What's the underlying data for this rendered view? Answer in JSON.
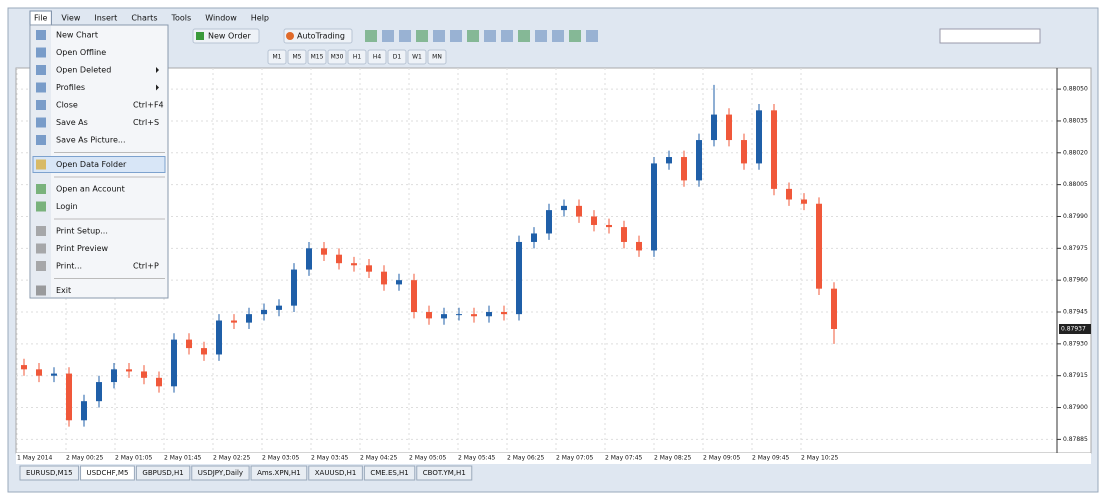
{
  "menubar": [
    "File",
    "View",
    "Insert",
    "Charts",
    "Tools",
    "Window",
    "Help"
  ],
  "toolbar": {
    "new_order": "New Order",
    "autotrading": "AutoTrading",
    "timeframes": [
      "M1",
      "M5",
      "M15",
      "M30",
      "H1",
      "H4",
      "D1",
      "W1",
      "MN"
    ]
  },
  "menu": {
    "groups": [
      [
        {
          "label": "New Chart"
        },
        {
          "label": "Open Offline"
        },
        {
          "label": "Open Deleted",
          "submenu": true
        },
        {
          "label": "Profiles",
          "submenu": true
        },
        {
          "label": "Close",
          "shortcut": "Ctrl+F4"
        },
        {
          "label": "Save As",
          "shortcut": "Ctrl+S"
        },
        {
          "label": "Save As Picture..."
        }
      ],
      [
        {
          "label": "Open Data Folder",
          "highlighted": true
        }
      ],
      [
        {
          "label": "Open an Account"
        },
        {
          "label": "Login"
        }
      ],
      [
        {
          "label": "Print Setup..."
        },
        {
          "label": "Print Preview"
        },
        {
          "label": "Print...",
          "shortcut": "Ctrl+P"
        }
      ],
      [
        {
          "label": "Exit"
        }
      ]
    ]
  },
  "chart": {
    "type": "candlestick",
    "up_color": "#1f5fa8",
    "down_color": "#f0583a",
    "ylim": [
      0.8788,
      0.88059
    ],
    "yticks": [
      {
        "value": 0.8805,
        "label": "0.88050"
      },
      {
        "value": 0.88035,
        "label": "0.88035"
      },
      {
        "value": 0.8802,
        "label": "0.88020"
      },
      {
        "value": 0.88005,
        "label": "0.88005"
      },
      {
        "value": 0.8799,
        "label": "0.87990"
      },
      {
        "value": 0.87975,
        "label": "0.87975"
      },
      {
        "value": 0.8796,
        "label": "0.87960"
      },
      {
        "value": 0.87945,
        "label": "0.87945"
      },
      {
        "value": 0.8793,
        "label": "0.87930"
      },
      {
        "value": 0.87915,
        "label": "0.87915"
      },
      {
        "value": 0.879,
        "label": "0.87900"
      },
      {
        "value": 0.87885,
        "label": "0.87885"
      }
    ],
    "current_price": {
      "value": 0.87937,
      "label": "0.87937"
    },
    "time_labels": [
      "1 May 2014",
      "2 May 00:25",
      "2 May 01:05",
      "2 May 01:45",
      "2 May 02:25",
      "2 May 03:05",
      "2 May 03:45",
      "2 May 04:25",
      "2 May 05:05",
      "2 May 05:45",
      "2 May 06:25",
      "2 May 07:05",
      "2 May 07:45",
      "2 May 08:25",
      "2 May 09:05",
      "2 May 09:45",
      "2 May 10:25"
    ],
    "candles": [
      [
        0.8792,
        0.87923,
        0.87915,
        0.87918
      ],
      [
        0.87918,
        0.87921,
        0.87912,
        0.87915
      ],
      [
        0.87915,
        0.87919,
        0.87912,
        0.87916
      ],
      [
        0.87916,
        0.87919,
        0.87891,
        0.87894
      ],
      [
        0.87894,
        0.87906,
        0.87891,
        0.87903
      ],
      [
        0.87903,
        0.87915,
        0.879,
        0.87912
      ],
      [
        0.87912,
        0.87921,
        0.87909,
        0.87918
      ],
      [
        0.87918,
        0.87921,
        0.87914,
        0.87917
      ],
      [
        0.87917,
        0.8792,
        0.87911,
        0.87914
      ],
      [
        0.87914,
        0.87917,
        0.87907,
        0.8791
      ],
      [
        0.8791,
        0.87935,
        0.87907,
        0.87932
      ],
      [
        0.87932,
        0.87935,
        0.87925,
        0.87928
      ],
      [
        0.87928,
        0.87931,
        0.87922,
        0.87925
      ],
      [
        0.87925,
        0.87944,
        0.87922,
        0.87941
      ],
      [
        0.87941,
        0.87944,
        0.87937,
        0.8794
      ],
      [
        0.8794,
        0.87947,
        0.87937,
        0.87944
      ],
      [
        0.87944,
        0.87949,
        0.87941,
        0.87946
      ],
      [
        0.87946,
        0.87951,
        0.87943,
        0.87948
      ],
      [
        0.87948,
        0.87968,
        0.87945,
        0.87965
      ],
      [
        0.87965,
        0.87978,
        0.87962,
        0.87975
      ],
      [
        0.87975,
        0.87978,
        0.87969,
        0.87972
      ],
      [
        0.87972,
        0.87975,
        0.87965,
        0.87968
      ],
      [
        0.87968,
        0.87971,
        0.87964,
        0.87967
      ],
      [
        0.87967,
        0.8797,
        0.87961,
        0.87964
      ],
      [
        0.87964,
        0.87967,
        0.87955,
        0.87958
      ],
      [
        0.87958,
        0.87963,
        0.87955,
        0.8796
      ],
      [
        0.8796,
        0.87963,
        0.87942,
        0.87945
      ],
      [
        0.87945,
        0.87948,
        0.87939,
        0.87942
      ],
      [
        0.87942,
        0.87947,
        0.87939,
        0.87944
      ],
      [
        0.87944,
        0.87947,
        0.87941,
        0.87944
      ],
      [
        0.87944,
        0.87947,
        0.8794,
        0.87943
      ],
      [
        0.87943,
        0.87948,
        0.8794,
        0.87945
      ],
      [
        0.87945,
        0.87948,
        0.87941,
        0.87944
      ],
      [
        0.87944,
        0.87981,
        0.87941,
        0.87978
      ],
      [
        0.87978,
        0.87985,
        0.87975,
        0.87982
      ],
      [
        0.87982,
        0.87996,
        0.87979,
        0.87993
      ],
      [
        0.87993,
        0.87998,
        0.8799,
        0.87995
      ],
      [
        0.87995,
        0.87998,
        0.87987,
        0.8799
      ],
      [
        0.8799,
        0.87993,
        0.87983,
        0.87986
      ],
      [
        0.87986,
        0.87989,
        0.87982,
        0.87985
      ],
      [
        0.87985,
        0.87988,
        0.87975,
        0.87978
      ],
      [
        0.87978,
        0.87981,
        0.87971,
        0.87974
      ],
      [
        0.87974,
        0.88018,
        0.87971,
        0.88015
      ],
      [
        0.88015,
        0.88021,
        0.88012,
        0.88018
      ],
      [
        0.88018,
        0.88021,
        0.88004,
        0.88007
      ],
      [
        0.88007,
        0.88029,
        0.88004,
        0.88026
      ],
      [
        0.88026,
        0.88052,
        0.88023,
        0.88038
      ],
      [
        0.88038,
        0.88041,
        0.88023,
        0.88026
      ],
      [
        0.88026,
        0.88029,
        0.88012,
        0.88015
      ],
      [
        0.88015,
        0.88043,
        0.88012,
        0.8804
      ],
      [
        0.8804,
        0.88043,
        0.88,
        0.88003
      ],
      [
        0.88003,
        0.88006,
        0.87995,
        0.87998
      ],
      [
        0.87998,
        0.88001,
        0.87993,
        0.87996
      ],
      [
        0.87996,
        0.87999,
        0.87953,
        0.87956
      ],
      [
        0.87956,
        0.87959,
        0.8793,
        0.87937
      ]
    ]
  },
  "tabs": {
    "items": [
      "EURUSD,M15",
      "USDCHF,M5",
      "GBPUSD,H1",
      "USDJPY,Daily",
      "Ams.XPN,H1",
      "XAUUSD,H1",
      "CME.ES,H1",
      "CBOT.YM,H1"
    ],
    "active": 1
  }
}
